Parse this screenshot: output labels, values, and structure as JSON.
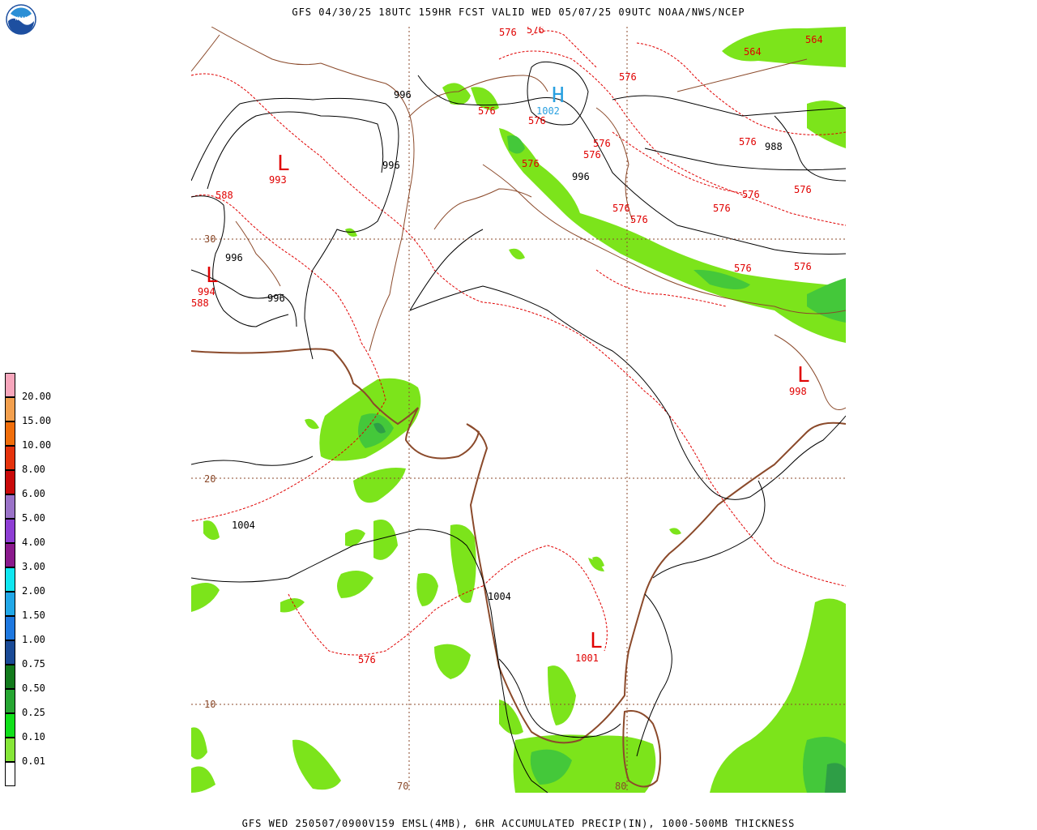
{
  "header": {
    "title": "GFS 04/30/25 18UTC 159HR FCST VALID WED 05/07/25 09UTC NOAA/NWS/NCEP",
    "footer": "GFS WED 250507/0900V159 EMSL(4MB), 6HR ACCUMULATED PRECIP(IN), 1000-500MB THICKNESS",
    "logo_text": "NOAA"
  },
  "colors": {
    "precip_light": "#7ce41b",
    "precip_mid": "#44c83a",
    "precip_dark": "#2e9e46",
    "thickness": "#e00000",
    "coast": "#8b4a2b",
    "low": "#e00000",
    "high": "#2aa0e0",
    "isobar": "#000000"
  },
  "legend": {
    "entries": [
      {
        "label": "20.00",
        "color": "#f7a6bc"
      },
      {
        "label": "15.00",
        "color": "#f3a04e"
      },
      {
        "label": "10.00",
        "color": "#f06e0b"
      },
      {
        "label": "8.00",
        "color": "#e5330c"
      },
      {
        "label": "6.00",
        "color": "#c90a0a"
      },
      {
        "label": "5.00",
        "color": "#9a72c8"
      },
      {
        "label": "4.00",
        "color": "#8e3ed4"
      },
      {
        "label": "3.00",
        "color": "#8a1a8c"
      },
      {
        "label": "2.00",
        "color": "#10e6f0"
      },
      {
        "label": "1.50",
        "color": "#22a8e8"
      },
      {
        "label": "1.00",
        "color": "#1e78e0"
      },
      {
        "label": "0.75",
        "color": "#1a4a96"
      },
      {
        "label": "0.50",
        "color": "#127a1c"
      },
      {
        "label": "0.25",
        "color": "#26a632"
      },
      {
        "label": "0.10",
        "color": "#10e01a"
      },
      {
        "label": "0.01",
        "color": "#86e638"
      },
      {
        "label": "",
        "color": "#ffffff"
      }
    ]
  },
  "grid_labels": {
    "lat30": "30",
    "lat20": "20",
    "lat10": "10",
    "lon70": "70",
    "lon80": "80"
  },
  "pressure_centers": [
    {
      "type": "L",
      "value": "993"
    },
    {
      "type": "L",
      "value": "994"
    },
    {
      "type": "H",
      "value": "1002"
    },
    {
      "type": "L",
      "value": "998"
    },
    {
      "type": "L",
      "value": "1001"
    }
  ],
  "isobar_labels": [
    "996",
    "996",
    "996",
    "996",
    "996",
    "988",
    "1004",
    "1004"
  ],
  "thickness_labels": [
    "576",
    "576",
    "576",
    "576",
    "576",
    "576",
    "576",
    "576",
    "576",
    "576",
    "576",
    "576",
    "576",
    "576",
    "576",
    "576",
    "576",
    "564",
    "564",
    "588",
    "588"
  ]
}
